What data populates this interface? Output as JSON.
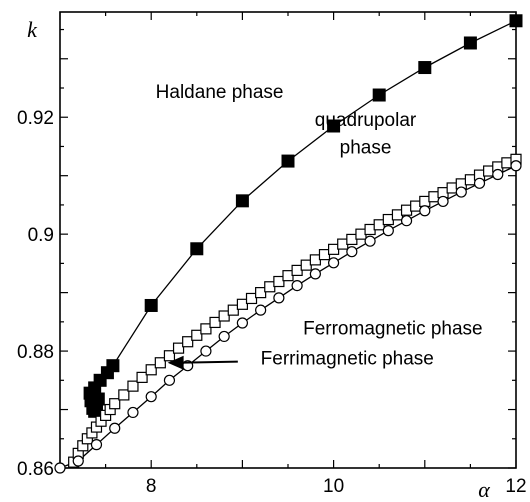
{
  "chart_data": {
    "type": "scatter",
    "xlabel": "α",
    "ylabel": "k",
    "xlim": [
      7.0,
      12.0
    ],
    "ylim": [
      0.86,
      0.938
    ],
    "x_ticks": [
      {
        "value": 8,
        "label": "8"
      },
      {
        "value": 10,
        "label": "10"
      },
      {
        "value": 12,
        "label": "12"
      }
    ],
    "y_ticks": [
      {
        "value": 0.86,
        "label": "0.86"
      },
      {
        "value": 0.88,
        "label": "0.88"
      },
      {
        "value": 0.9,
        "label": "0.9"
      },
      {
        "value": 0.92,
        "label": "0.92"
      }
    ],
    "grid": false,
    "series": [
      {
        "marker": "filled-square",
        "color": "#000000",
        "points": [
          [
            7.42,
            0.8718
          ],
          [
            7.4,
            0.8705
          ],
          [
            7.38,
            0.8697
          ],
          [
            7.36,
            0.8702
          ],
          [
            7.34,
            0.8715
          ],
          [
            7.33,
            0.8728
          ],
          [
            7.38,
            0.8737
          ],
          [
            7.44,
            0.875
          ],
          [
            7.52,
            0.8763
          ],
          [
            7.58,
            0.8775
          ],
          [
            8.0,
            0.8878
          ],
          [
            8.5,
            0.8975
          ],
          [
            9.0,
            0.9057
          ],
          [
            9.5,
            0.9125
          ],
          [
            10.0,
            0.9185
          ],
          [
            10.5,
            0.9238
          ],
          [
            11.0,
            0.9285
          ],
          [
            11.5,
            0.9327
          ],
          [
            12.0,
            0.9365
          ]
        ]
      },
      {
        "marker": "open-square",
        "color": "#000000",
        "points": [
          [
            7.15,
            0.861
          ],
          [
            7.2,
            0.8625
          ],
          [
            7.25,
            0.8638
          ],
          [
            7.3,
            0.865
          ],
          [
            7.35,
            0.866
          ],
          [
            7.4,
            0.867
          ],
          [
            7.45,
            0.868
          ],
          [
            7.5,
            0.869
          ],
          [
            7.55,
            0.87
          ],
          [
            7.6,
            0.871
          ],
          [
            7.7,
            0.8725
          ],
          [
            7.8,
            0.874
          ],
          [
            7.9,
            0.8755
          ],
          [
            8.0,
            0.8768
          ],
          [
            8.1,
            0.878
          ],
          [
            8.2,
            0.8792
          ],
          [
            8.3,
            0.8805
          ],
          [
            8.4,
            0.8816
          ],
          [
            8.5,
            0.8827
          ],
          [
            8.6,
            0.8838
          ],
          [
            8.7,
            0.8849
          ],
          [
            8.8,
            0.886
          ],
          [
            8.9,
            0.887
          ],
          [
            9.0,
            0.888
          ],
          [
            9.1,
            0.889
          ],
          [
            9.2,
            0.89
          ],
          [
            9.3,
            0.891
          ],
          [
            9.4,
            0.8919
          ],
          [
            9.5,
            0.8929
          ],
          [
            9.6,
            0.8938
          ],
          [
            9.7,
            0.8947
          ],
          [
            9.8,
            0.8956
          ],
          [
            9.9,
            0.8965
          ],
          [
            10.0,
            0.8974
          ],
          [
            10.1,
            0.8983
          ],
          [
            10.2,
            0.8991
          ],
          [
            10.3,
            0.9
          ],
          [
            10.4,
            0.9008
          ],
          [
            10.5,
            0.9016
          ],
          [
            10.6,
            0.9025
          ],
          [
            10.7,
            0.9033
          ],
          [
            10.8,
            0.9041
          ],
          [
            10.9,
            0.9048
          ],
          [
            11.0,
            0.9056
          ],
          [
            11.1,
            0.9064
          ],
          [
            11.2,
            0.9071
          ],
          [
            11.3,
            0.9079
          ],
          [
            11.4,
            0.9086
          ],
          [
            11.5,
            0.9093
          ],
          [
            11.6,
            0.9101
          ],
          [
            11.7,
            0.9108
          ],
          [
            11.8,
            0.9115
          ],
          [
            11.9,
            0.9122
          ],
          [
            12.0,
            0.9128
          ]
        ]
      },
      {
        "marker": "open-circle",
        "color": "#000000",
        "points": [
          [
            7.0,
            0.86
          ],
          [
            7.2,
            0.8612
          ],
          [
            7.4,
            0.864
          ],
          [
            7.6,
            0.8668
          ],
          [
            7.8,
            0.8695
          ],
          [
            8.0,
            0.8722
          ],
          [
            8.2,
            0.875
          ],
          [
            8.4,
            0.8775
          ],
          [
            8.6,
            0.88
          ],
          [
            8.8,
            0.8825
          ],
          [
            9.0,
            0.8848
          ],
          [
            9.2,
            0.887
          ],
          [
            9.4,
            0.8891
          ],
          [
            9.6,
            0.8912
          ],
          [
            9.8,
            0.8932
          ],
          [
            10.0,
            0.8951
          ],
          [
            10.2,
            0.897
          ],
          [
            10.4,
            0.8988
          ],
          [
            10.6,
            0.9006
          ],
          [
            10.8,
            0.9023
          ],
          [
            11.0,
            0.904
          ],
          [
            11.2,
            0.9056
          ],
          [
            11.4,
            0.9072
          ],
          [
            11.6,
            0.9087
          ],
          [
            11.8,
            0.9102
          ],
          [
            12.0,
            0.9117
          ]
        ]
      }
    ],
    "annotations": [
      {
        "text": "Haldane phase",
        "x": 8.75,
        "y": 0.9233
      },
      {
        "text": "quadrupolar",
        "x": 10.35,
        "y": 0.9185
      },
      {
        "text": "phase",
        "x": 10.35,
        "y": 0.9138
      },
      {
        "text": "Ferromagnetic phase",
        "x": 10.65,
        "y": 0.8828
      },
      {
        "text": "Ferrimagnetic phase",
        "x": 10.15,
        "y": 0.8777
      }
    ],
    "arrow": {
      "from": [
        8.95,
        0.8782
      ],
      "to": [
        8.18,
        0.878
      ]
    }
  }
}
